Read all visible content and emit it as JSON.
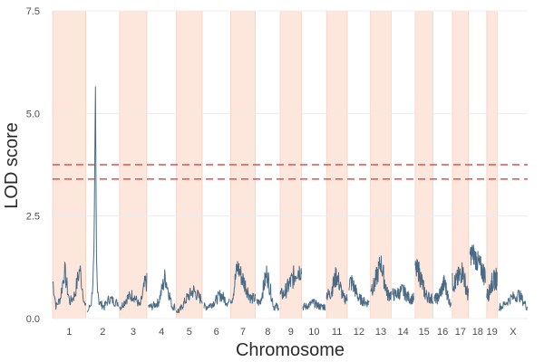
{
  "chart_data": {
    "type": "line",
    "xlabel": "Chromosome",
    "ylabel": "LOD score",
    "ylim": [
      0,
      7.5
    ],
    "y_ticks": [
      "0.0",
      "2.5",
      "5.0",
      "7.5"
    ],
    "y_tick_values": [
      0,
      2.5,
      5.0,
      7.5
    ],
    "chromosomes": [
      "1",
      "2",
      "3",
      "4",
      "5",
      "6",
      "7",
      "8",
      "9",
      "10",
      "11",
      "12",
      "13",
      "14",
      "15",
      "16",
      "17",
      "18",
      "19",
      "X"
    ],
    "chromosome_lengths_Mb": [
      195,
      182,
      160,
      157,
      152,
      150,
      145,
      130,
      125,
      131,
      122,
      120,
      121,
      125,
      104,
      98,
      95,
      91,
      61,
      171
    ],
    "grid": true,
    "alternating_chromosome_shading": true,
    "series": [
      {
        "color": "#4a6a85",
        "points": [
          [
            "1",
            3,
            0.9
          ],
          [
            "1",
            20,
            0.3
          ],
          [
            "1",
            45,
            0.5
          ],
          [
            "1",
            70,
            1.2
          ],
          [
            "1",
            100,
            0.4
          ],
          [
            "1",
            130,
            0.6
          ],
          [
            "1",
            160,
            1.25
          ],
          [
            "1",
            190,
            0.3
          ],
          [
            "2",
            5,
            0.2
          ],
          [
            "2",
            25,
            0.4
          ],
          [
            "2",
            40,
            1.5
          ],
          [
            "2",
            45,
            4.0
          ],
          [
            "2",
            48,
            6.05
          ],
          [
            "2",
            51,
            3.8
          ],
          [
            "2",
            55,
            1.2
          ],
          [
            "2",
            70,
            0.4
          ],
          [
            "2",
            100,
            0.3
          ],
          [
            "2",
            130,
            0.5
          ],
          [
            "2",
            170,
            0.4
          ],
          [
            "3",
            10,
            0.3
          ],
          [
            "3",
            40,
            0.5
          ],
          [
            "3",
            80,
            0.6
          ],
          [
            "3",
            120,
            0.3
          ],
          [
            "3",
            150,
            0.9
          ],
          [
            "4",
            20,
            0.3
          ],
          [
            "4",
            60,
            0.4
          ],
          [
            "4",
            100,
            1.05
          ],
          [
            "4",
            140,
            0.3
          ],
          [
            "5",
            20,
            0.2
          ],
          [
            "5",
            60,
            0.5
          ],
          [
            "5",
            100,
            0.7
          ],
          [
            "5",
            140,
            0.5
          ],
          [
            "6",
            20,
            0.3
          ],
          [
            "6",
            60,
            0.4
          ],
          [
            "6",
            100,
            0.6
          ],
          [
            "6",
            140,
            0.4
          ],
          [
            "7",
            10,
            0.5
          ],
          [
            "7",
            40,
            1.3
          ],
          [
            "7",
            80,
            0.9
          ],
          [
            "7",
            120,
            0.5
          ],
          [
            "8",
            20,
            0.4
          ],
          [
            "8",
            60,
            1.15
          ],
          [
            "8",
            100,
            0.3
          ],
          [
            "9",
            20,
            0.6
          ],
          [
            "9",
            60,
            0.9
          ],
          [
            "9",
            100,
            1.2
          ],
          [
            "10",
            20,
            0.3
          ],
          [
            "10",
            60,
            0.4
          ],
          [
            "10",
            100,
            0.3
          ],
          [
            "11",
            20,
            0.6
          ],
          [
            "11",
            60,
            1.1
          ],
          [
            "11",
            100,
            0.5
          ],
          [
            "12",
            20,
            0.9
          ],
          [
            "12",
            60,
            0.5
          ],
          [
            "12",
            100,
            0.4
          ],
          [
            "13",
            20,
            0.8
          ],
          [
            "13",
            60,
            1.4
          ],
          [
            "13",
            100,
            0.6
          ],
          [
            "14",
            20,
            0.6
          ],
          [
            "14",
            60,
            0.7
          ],
          [
            "14",
            100,
            0.5
          ],
          [
            "15",
            20,
            1.2
          ],
          [
            "15",
            60,
            0.6
          ],
          [
            "15",
            90,
            0.5
          ],
          [
            "16",
            20,
            0.5
          ],
          [
            "16",
            60,
            0.9
          ],
          [
            "16",
            90,
            0.4
          ],
          [
            "17",
            20,
            0.9
          ],
          [
            "17",
            60,
            1.2
          ],
          [
            "17",
            90,
            0.6
          ],
          [
            "18",
            20,
            1.6
          ],
          [
            "18",
            60,
            1.3
          ],
          [
            "18",
            85,
            1.1
          ],
          [
            "19",
            10,
            0.6
          ],
          [
            "19",
            30,
            0.9
          ],
          [
            "19",
            55,
            1.0
          ],
          [
            "X",
            20,
            0.3
          ],
          [
            "X",
            70,
            0.5
          ],
          [
            "X",
            120,
            0.6
          ],
          [
            "X",
            165,
            0.3
          ]
        ]
      }
    ],
    "thresholds": [
      {
        "value": 3.4,
        "color": "#d9534f",
        "style": "dashed"
      },
      {
        "value": 3.75,
        "color": "#d9534f",
        "style": "dashed"
      }
    ],
    "colors": {
      "line": "#4a6a85",
      "shade": "#fde7dd",
      "shade_border": "#f2c7b6",
      "grid": "#ececec",
      "threshold": "#d9534f"
    }
  }
}
